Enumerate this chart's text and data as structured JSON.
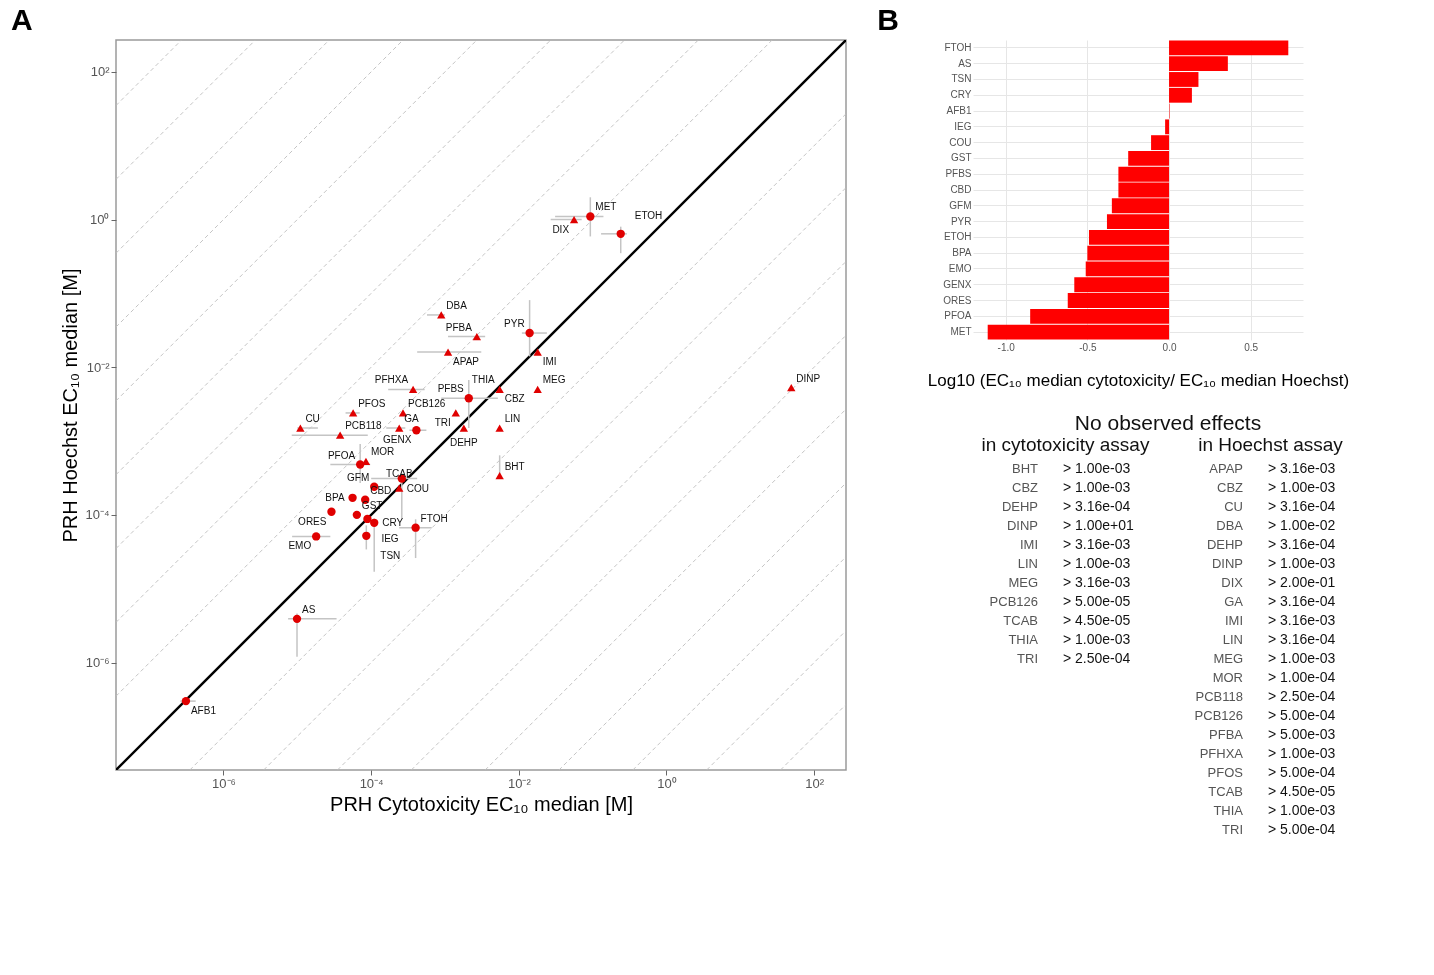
{
  "chart_data": [
    {
      "type": "scatter",
      "title": "A",
      "xlabel": "PRH Cytotoxicity EC₁₀ median [M]",
      "ylabel": "PRH Hoechst EC₁₀ median [M]",
      "log": "xy",
      "grid": false,
      "xlim": [
        3.5e-08,
        270
      ],
      "ylim": [
        3.5e-08,
        270
      ],
      "xticks": [
        {
          "value": 1e-06,
          "label": "10⁻⁶"
        },
        {
          "value": 0.0001,
          "label": "10⁻⁴"
        },
        {
          "value": 0.01,
          "label": "10⁻²"
        },
        {
          "value": 1,
          "label": "10⁰"
        },
        {
          "value": 100,
          "label": "10²"
        }
      ],
      "yticks": [
        {
          "value": 1e-06,
          "label": "10⁻⁶"
        },
        {
          "value": 0.0001,
          "label": "10⁻⁴"
        },
        {
          "value": 0.01,
          "label": "10⁻²"
        },
        {
          "value": 1,
          "label": "10⁰"
        },
        {
          "value": 100,
          "label": "10²"
        }
      ],
      "series": [
        {
          "type": "line",
          "line_style": "dashed",
          "color": "#bdbdbd",
          "x": [
            3.5e-08,
            27
          ],
          "values": [
            3.5e-07,
            270
          ]
        },
        {
          "type": "line",
          "line_style": "dashed",
          "color": "#bdbdbd",
          "x": [
            3.5e-08,
            2.7
          ],
          "values": [
            3.5e-06,
            270
          ]
        },
        {
          "type": "line",
          "line_style": "dashed",
          "color": "#bdbdbd",
          "x": [
            3.5e-08,
            0.27
          ],
          "values": [
            3.5e-05,
            270
          ]
        },
        {
          "type": "line",
          "line_style": "dashed",
          "color": "#bdbdbd",
          "x": [
            3.5e-08,
            0.027
          ],
          "values": [
            0.00035,
            270
          ]
        },
        {
          "type": "line",
          "line_style": "dashed",
          "color": "#bdbdbd",
          "x": [
            3.5e-08,
            0.0027
          ],
          "values": [
            0.0035,
            270
          ]
        },
        {
          "type": "line",
          "line_style": "dashed",
          "color": "#bdbdbd",
          "x": [
            3.5e-08,
            0.00027
          ],
          "values": [
            0.035,
            270
          ]
        },
        {
          "type": "line",
          "line_style": "dashed",
          "color": "#bdbdbd",
          "x": [
            3.5e-08,
            2.7e-05
          ],
          "values": [
            0.35,
            270
          ]
        },
        {
          "type": "line",
          "line_style": "dashed",
          "color": "#bdbdbd",
          "x": [
            3.5e-08,
            2.7e-06
          ],
          "values": [
            3.5,
            270
          ]
        },
        {
          "type": "line",
          "line_style": "dashed",
          "color": "#bdbdbd",
          "x": [
            3.5e-08,
            2.7e-07
          ],
          "values": [
            35,
            270
          ]
        },
        {
          "type": "line",
          "line_style": "dashed",
          "color": "#bdbdbd",
          "x": [
            3.5e-07,
            270
          ],
          "values": [
            3.5e-08,
            27
          ]
        },
        {
          "type": "line",
          "line_style": "dashed",
          "color": "#bdbdbd",
          "x": [
            3.5e-06,
            270
          ],
          "values": [
            3.5e-08,
            2.7
          ]
        },
        {
          "type": "line",
          "line_style": "dashed",
          "color": "#bdbdbd",
          "x": [
            3.5e-05,
            270
          ],
          "values": [
            3.5e-08,
            0.27
          ]
        },
        {
          "type": "line",
          "line_style": "dashed",
          "color": "#bdbdbd",
          "x": [
            0.00035,
            270
          ],
          "values": [
            3.5e-08,
            0.027
          ]
        },
        {
          "type": "line",
          "line_style": "dashed",
          "color": "#bdbdbd",
          "x": [
            0.0035,
            270
          ],
          "values": [
            3.5e-08,
            0.0027
          ]
        },
        {
          "type": "line",
          "line_style": "dashed",
          "color": "#bdbdbd",
          "x": [
            0.035,
            270
          ],
          "values": [
            3.5e-08,
            0.00027
          ]
        },
        {
          "type": "line",
          "line_style": "dashed",
          "color": "#bdbdbd",
          "x": [
            0.35,
            270
          ],
          "values": [
            3.5e-08,
            2.7e-05
          ]
        },
        {
          "type": "line",
          "line_style": "dashed",
          "color": "#bdbdbd",
          "x": [
            3.5,
            270
          ],
          "values": [
            3.5e-08,
            2.7e-06
          ]
        },
        {
          "type": "line",
          "line_style": "dashed",
          "color": "#bdbdbd",
          "x": [
            35,
            270
          ],
          "values": [
            3.5e-08,
            2.7e-07
          ]
        },
        {
          "type": "line",
          "line_style": "solid",
          "color": "#000000",
          "x": [
            3.5e-08,
            270
          ],
          "values": [
            3.5e-08,
            270
          ]
        },
        {
          "type": "scatter",
          "marker": "circle",
          "color": "#e00000",
          "x": [
            0.093,
            0.24,
            0.014,
            0.0021,
            0.00041,
            7.1e-05,
            0.00011,
            0.00026,
            5.6e-05,
            8.3e-05,
            2.9e-05,
            6.4e-05,
            8.9e-05,
            0.00011,
            8.6e-05,
            1.8e-05,
            0.0004,
            9.9e-06,
            3.1e-07
          ],
          "values": [
            1.1,
            0.64,
            0.029,
            0.0038,
            0.0014,
            0.00048,
            0.00024,
            0.00031,
            0.00017,
            0.00016,
            0.00011,
            0.0001,
            8.8e-05,
            7.8e-05,
            5.2e-05,
            5.1e-05,
            6.7e-05,
            3.9e-06,
            3e-07
          ],
          "xerrors": [
            [
              0.031,
              0.14
            ],
            [
              0.13,
              0.29
            ],
            [
              0.011,
              0.024
            ],
            [
              0.00089,
              0.0052
            ],
            [
              0.00033,
              0.00056
            ],
            [
              2.8e-05,
              9.7e-05
            ],
            null,
            [
              0.0001,
              0.00042
            ],
            null,
            null,
            null,
            null,
            null,
            null,
            null,
            [
              8.5e-06,
              2.8e-05
            ],
            [
              0.00024,
              0.00066
            ],
            [
              7.5e-06,
              3.4e-05
            ],
            [
              2.6e-07,
              4.2e-07
            ]
          ],
          "errors": [
            [
              0.59,
              2.0
            ],
            [
              0.35,
              0.8
            ],
            [
              0.014,
              0.081
            ],
            [
              0.0015,
              0.0067
            ],
            null,
            [
              0.00027,
              0.00091
            ],
            null,
            [
              9e-05,
              0.00037
            ],
            null,
            null,
            null,
            null,
            null,
            [
              1.7e-05,
              8.9e-05
            ],
            [
              3.4e-05,
              7.2e-05
            ],
            null,
            [
              2.6e-05,
              8.7e-05
            ],
            [
              1.2e-06,
              4.6e-06
            ],
            null
          ]
        },
        {
          "type": "scatter",
          "marker": "triangle",
          "color": "#e00000",
          "x": [
            0.056,
            0.00089,
            0.0027,
            0.0011,
            0.018,
            0.00037,
            0.0055,
            null,
            0.018,
            5.7e-05,
            0.00027,
            0.0014,
            1.1e-05,
            3.8e-05,
            0.00024,
            0.0018,
            0.0055,
            8.5e-05,
            0.00024,
            0.0055,
            49
          ],
          "values": [
            1.0,
            0.051,
            0.026,
            0.016,
            0.016,
            0.005,
            0.005,
            null,
            0.005,
            0.0024,
            0.0024,
            0.0024,
            0.0015,
            0.0012,
            0.0015,
            0.0015,
            0.0015,
            0.00053,
            0.00023,
            0.00034,
            0.0053
          ],
          "xerrors": [
            [
              0.027,
              0.071
            ],
            [
              0.00057,
              0.001
            ],
            [
              0.0011,
              0.0035
            ],
            [
              0.00042,
              0.0031
            ],
            null,
            [
              0.00017,
              0.00053
            ],
            null,
            null,
            null,
            [
              4.5e-05,
              7e-05
            ],
            null,
            null,
            [
              1e-05,
              1.9e-05
            ],
            [
              8.4e-06,
              9e-05
            ],
            [
              0.00016,
              0.00029
            ],
            null,
            null,
            null,
            null,
            null,
            null
          ],
          "errors": [
            null,
            null,
            null,
            null,
            null,
            null,
            null,
            null,
            null,
            null,
            null,
            null,
            null,
            null,
            null,
            null,
            null,
            null,
            null,
            [
              0.00034,
              0.00064
            ],
            null
          ]
        }
      ],
      "annotations": [
        {
          "text": "MET",
          "x": 0.093,
          "y": 1.1
        },
        {
          "text": "ETOH",
          "x": 0.24,
          "y": 0.64
        },
        {
          "text": "PYR",
          "x": 0.014,
          "y": 0.029
        },
        {
          "text": "PFBS",
          "x": 0.0021,
          "y": 0.0038
        },
        {
          "text": "GENX",
          "x": 0.00041,
          "y": 0.0014
        },
        {
          "text": "PFOA",
          "x": 7.1e-05,
          "y": 0.00048
        },
        {
          "text": "GFM",
          "x": 0.00011,
          "y": 0.00024
        },
        {
          "text": "COU",
          "x": 0.00026,
          "y": 0.00031
        },
        {
          "text": "BPA",
          "x": 5.6e-05,
          "y": 0.00017
        },
        {
          "text": "CBD",
          "x": 8.3e-05,
          "y": 0.00016
        },
        {
          "text": "ORES",
          "x": 2.9e-05,
          "y": 0.00011
        },
        {
          "text": "GST",
          "x": 6.4e-05,
          "y": 0.0001
        },
        {
          "text": "IEG",
          "x": 8.9e-05,
          "y": 8.8e-05
        },
        {
          "text": "CRY",
          "x": 0.00011,
          "y": 7.8e-05
        },
        {
          "text": "TSN",
          "x": 8.6e-05,
          "y": 5.2e-05
        },
        {
          "text": "EMO",
          "x": 1.8e-05,
          "y": 5.1e-05
        },
        {
          "text": "FTOH",
          "x": 0.0004,
          "y": 6.7e-05
        },
        {
          "text": "AS",
          "x": 9.9e-06,
          "y": 3.9e-06
        },
        {
          "text": "AFB1",
          "x": 3.1e-07,
          "y": 3e-07
        },
        {
          "text": "DIX",
          "x": 0.056,
          "y": 1.0
        },
        {
          "text": "DBA",
          "x": 0.00089,
          "y": 0.051
        },
        {
          "text": "PFBA",
          "x": 0.0027,
          "y": 0.026
        },
        {
          "text": "APAP",
          "x": 0.0011,
          "y": 0.016
        },
        {
          "text": "IMI",
          "x": 0.018,
          "y": 0.016
        },
        {
          "text": "PFHXA",
          "x": 0.00037,
          "y": 0.005
        },
        {
          "text": "CBZ",
          "x": 0.0055,
          "y": 0.005
        },
        {
          "text": "THIA",
          "x": 0.0055,
          "y": 0.005
        },
        {
          "text": "MEG",
          "x": 0.018,
          "y": 0.005
        },
        {
          "text": "PFOS",
          "x": 5.7e-05,
          "y": 0.0024
        },
        {
          "text": "PCB126",
          "x": 0.00027,
          "y": 0.0024
        },
        {
          "text": "TRI",
          "x": 0.0014,
          "y": 0.0024
        },
        {
          "text": "CU",
          "x": 1.1e-05,
          "y": 0.0015
        },
        {
          "text": "PCB118",
          "x": 3.8e-05,
          "y": 0.0012
        },
        {
          "text": "GA",
          "x": 0.00024,
          "y": 0.0015
        },
        {
          "text": "DEHP",
          "x": 0.0018,
          "y": 0.0015
        },
        {
          "text": "LIN",
          "x": 0.0055,
          "y": 0.0015
        },
        {
          "text": "MOR",
          "x": 8.5e-05,
          "y": 0.00053
        },
        {
          "text": "TCAB",
          "x": 0.00024,
          "y": 0.00023
        },
        {
          "text": "BHT",
          "x": 0.0055,
          "y": 0.00034
        },
        {
          "text": "DINP",
          "x": 49,
          "y": 0.0053
        }
      ]
    },
    {
      "type": "bar",
      "orientation": "horizontal",
      "title": "B",
      "xlabel": "Log10 (EC₁₀ median cytotoxicity/ EC₁₀ median Hoechst)",
      "grid": true,
      "color": "#ff0000",
      "categories": [
        "FTOH",
        "AS",
        "TSN",
        "CRY",
        "AFB1",
        "IEG",
        "COU",
        "GST",
        "PFBS",
        "CBD",
        "GFM",
        "PYR",
        "ETOH",
        "BPA",
        "EMO",
        "GENX",
        "ORES",
        "PFOA",
        "MET"
      ],
      "values": [
        0.73,
        0.36,
        0.18,
        0.14,
        0.003,
        -0.024,
        -0.11,
        -0.25,
        -0.31,
        -0.31,
        -0.35,
        -0.38,
        -0.49,
        -0.5,
        -0.51,
        -0.58,
        -0.62,
        -0.85,
        -1.11
      ],
      "xlim": [
        -1.2,
        0.82
      ],
      "xticks": [
        {
          "value": -1.0,
          "label": "-1.0"
        },
        {
          "value": -0.5,
          "label": "-0.5"
        },
        {
          "value": 0.0,
          "label": "0.0"
        },
        {
          "value": 0.5,
          "label": "0.5"
        }
      ]
    },
    {
      "type": "other",
      "title": "No observed effects",
      "subtitle": "in cytotoxicity assay",
      "categories": [
        "BHT",
        "CBZ",
        "DEHP",
        "DINP",
        "IMI",
        "LIN",
        "MEG",
        "PCB126",
        "TCAB",
        "THIA",
        "TRI"
      ],
      "value_labels": [
        "> 1.00e-03",
        "> 1.00e-03",
        "> 3.16e-04",
        "> 1.00e+01",
        "> 3.16e-03",
        "> 1.00e-03",
        "> 3.16e-03",
        "> 5.00e-05",
        "> 4.50e-05",
        "> 1.00e-03",
        "> 2.50e-04"
      ]
    },
    {
      "type": "other",
      "subtitle": "in Hoechst assay",
      "categories": [
        "APAP",
        "CBZ",
        "CU",
        "DBA",
        "DEHP",
        "DINP",
        "DIX",
        "GA",
        "IMI",
        "LIN",
        "MEG",
        "MOR",
        "PCB118",
        "PCB126",
        "PFBA",
        "PFHXA",
        "PFOS",
        "TCAB",
        "THIA",
        "TRI"
      ],
      "value_labels": [
        "> 3.16e-03",
        "> 1.00e-03",
        "> 3.16e-04",
        "> 1.00e-02",
        "> 3.16e-04",
        "> 1.00e-03",
        "> 2.00e-01",
        "> 3.16e-04",
        "> 3.16e-03",
        "> 3.16e-04",
        "> 1.00e-03",
        "> 1.00e-04",
        "> 2.50e-04",
        "> 5.00e-04",
        "> 5.00e-03",
        "> 1.00e-03",
        "> 5.00e-04",
        "> 4.50e-05",
        "> 1.00e-03",
        "> 5.00e-04"
      ]
    }
  ]
}
